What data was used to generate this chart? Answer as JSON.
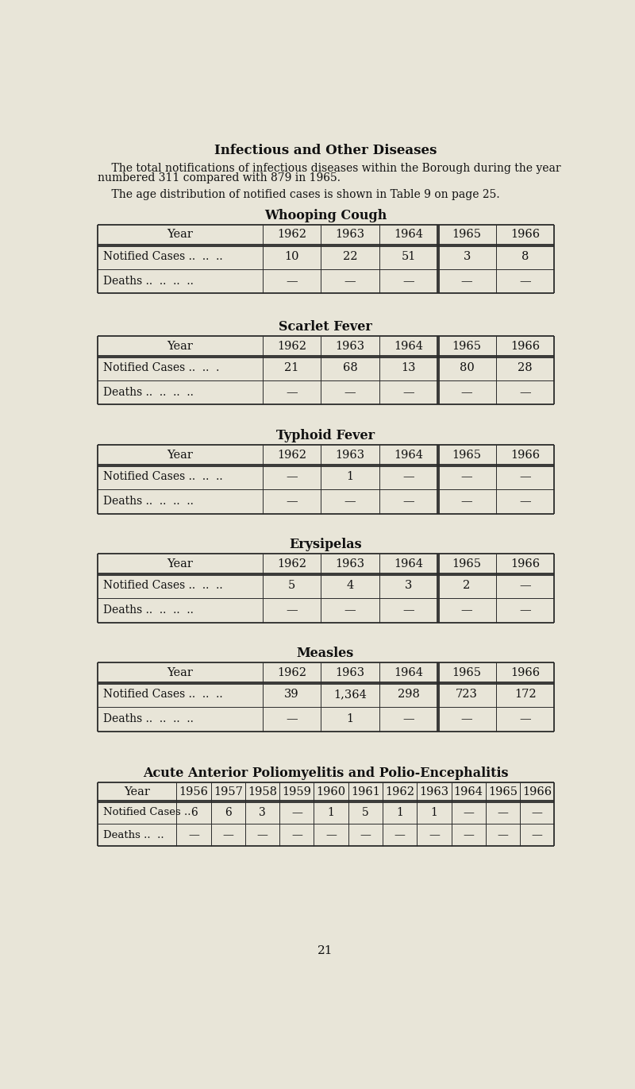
{
  "bg_color": "#e8e5d8",
  "title": "Infectious and Other Diseases",
  "para1_indent": "    The total notifications of infectious diseases within the Borough during the year",
  "para1_cont": "numbered 311 compared with 879 in 1965.",
  "para2": "    The age distribution of notified cases is shown in Table 9 on page 25.",
  "page_number": "21",
  "tables": [
    {
      "title": "Whooping Cough",
      "years": [
        "1962",
        "1963",
        "1964",
        "1965",
        "1966"
      ],
      "rows": [
        {
          "label": "Notified Cases ..  ..  ..",
          "values": [
            "10",
            "22",
            "51",
            "3",
            "8"
          ]
        },
        {
          "label": "Deaths ..  ..  ..  ..",
          "values": [
            "—",
            "—",
            "—",
            "—",
            "—"
          ]
        }
      ],
      "double_line_after_col": 3
    },
    {
      "title": "Scarlet Fever",
      "years": [
        "1962",
        "1963",
        "1964",
        "1965",
        "1966"
      ],
      "rows": [
        {
          "label": "Notified Cases ..  ..  .",
          "values": [
            "21",
            "68",
            "13",
            "80",
            "28"
          ]
        },
        {
          "label": "Deaths ..  ..  ..  ..",
          "values": [
            "—",
            "—",
            "—",
            "—",
            "—"
          ]
        }
      ],
      "double_line_after_col": 3
    },
    {
      "title": "Typhoid Fever",
      "years": [
        "1962",
        "1963",
        "1964",
        "1965",
        "1966"
      ],
      "rows": [
        {
          "label": "Notified Cases ..  ..  ..",
          "values": [
            "—",
            "1",
            "—",
            "—",
            "—"
          ]
        },
        {
          "label": "Deaths ..  ..  ..  ..",
          "values": [
            "—",
            "—",
            "—",
            "—",
            "—"
          ]
        }
      ],
      "double_line_after_col": 3
    },
    {
      "title": "Erysipelas",
      "years": [
        "1962",
        "1963",
        "1964",
        "1965",
        "1966"
      ],
      "rows": [
        {
          "label": "Notified Cases ..  ..  ..",
          "values": [
            "5",
            "4",
            "3",
            "2",
            "—"
          ]
        },
        {
          "label": "Deaths ..  ..  ..  ..",
          "values": [
            "—",
            "—",
            "—",
            "—",
            "—"
          ]
        }
      ],
      "double_line_after_col": 3
    },
    {
      "title": "Measles",
      "years": [
        "1962",
        "1963",
        "1964",
        "1965",
        "1966"
      ],
      "rows": [
        {
          "label": "Notified Cases ..  ..  ..",
          "values": [
            "39",
            "1,364",
            "298",
            "723",
            "172"
          ]
        },
        {
          "label": "Deaths ..  ..  ..  ..",
          "values": [
            "—",
            "1",
            "—",
            "—",
            "—"
          ]
        }
      ],
      "double_line_after_col": 3
    },
    {
      "title": "Acute Anterior Poliomyelitis and Polio-Encephalitis",
      "years": [
        "1956",
        "1957",
        "1958",
        "1959",
        "1960",
        "1961",
        "1962",
        "1963",
        "1964",
        "1965",
        "1966"
      ],
      "rows": [
        {
          "label": "Notified Cases ..",
          "values": [
            "6",
            "6",
            "3",
            "—",
            "1",
            "5",
            "1",
            "1",
            "—",
            "—",
            "—"
          ]
        },
        {
          "label": "Deaths ..  ..",
          "values": [
            "—",
            "—",
            "—",
            "—",
            "—",
            "—",
            "—",
            "—",
            "—",
            "—",
            "—"
          ]
        }
      ],
      "double_line_after_col": null
    }
  ]
}
